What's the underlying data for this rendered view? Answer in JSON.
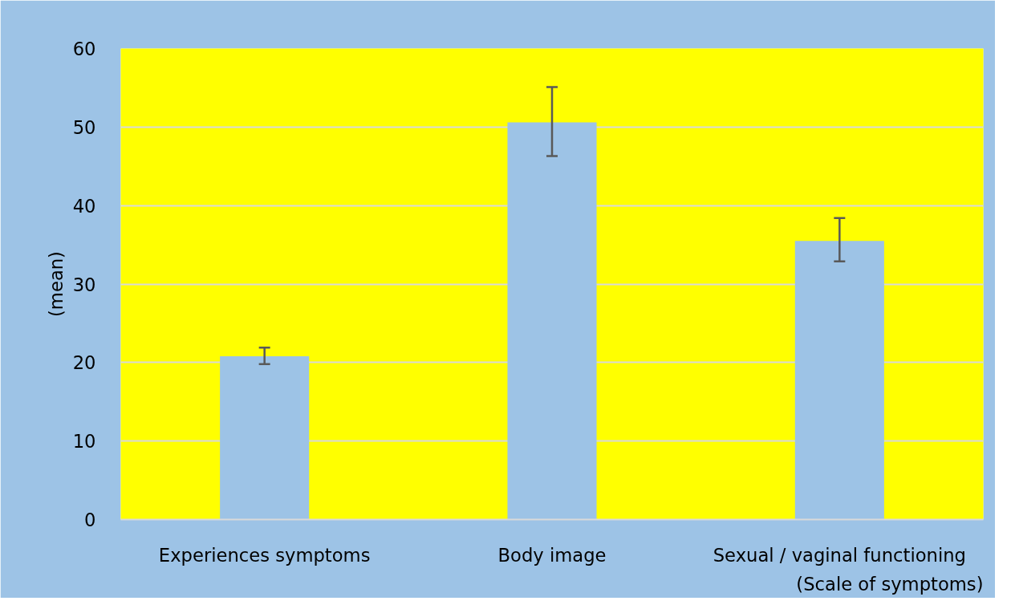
{
  "chart_data": {
    "type": "bar",
    "ylabel": "(mean)",
    "xlabel": "(Scale of symptoms)",
    "categories": [
      "Experiences symptoms",
      "Body image",
      "Sexual / vaginal functioning"
    ],
    "values": [
      20.8,
      50.6,
      35.5
    ],
    "color": "#9dc3e6",
    "errors": [
      [
        19.8,
        21.9
      ],
      [
        46.3,
        55.1
      ],
      [
        32.9,
        38.4
      ]
    ],
    "ylim": [
      0,
      60
    ],
    "yticks": [
      0,
      10,
      20,
      30,
      40,
      50,
      60
    ],
    "grid": "y"
  }
}
